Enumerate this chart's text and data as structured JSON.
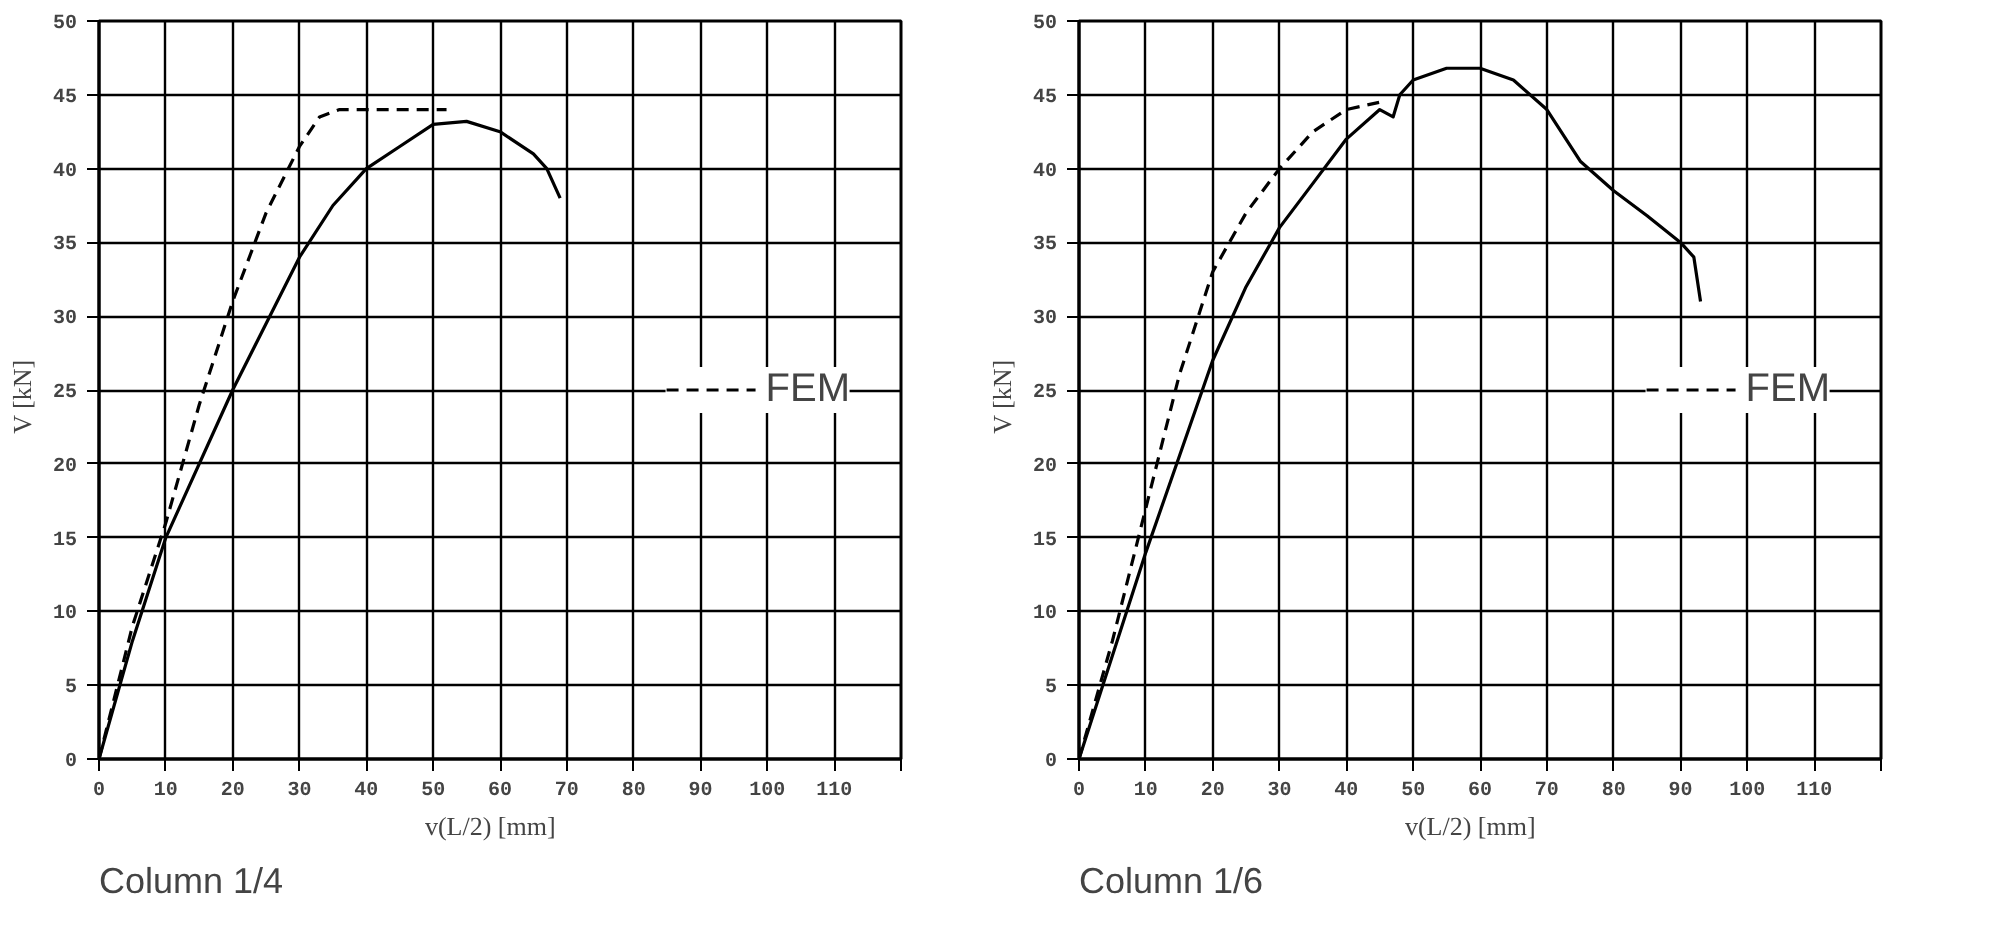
{
  "chart_data": [
    {
      "type": "line",
      "xlabel": "v(L/2)    [mm]",
      "ylabel": "V   [kN]",
      "annotations": [
        "Column 1/4"
      ],
      "xlim": [
        0,
        120
      ],
      "ylim": [
        0,
        50
      ],
      "xticks": [
        0,
        10,
        20,
        30,
        40,
        50,
        60,
        70,
        80,
        90,
        100,
        110,
        {
          "value": 120,
          "label": null
        }
      ],
      "yticks": [
        0,
        5,
        10,
        15,
        20,
        25,
        30,
        35,
        40,
        45,
        50
      ],
      "grid": true,
      "legend": "right",
      "marker": "none",
      "series": [
        {
          "color": "#000000",
          "line_style": "solid",
          "x": [
            0,
            5,
            10,
            20,
            30,
            35,
            40,
            45,
            50,
            55,
            60,
            65,
            67,
            69
          ],
          "values": [
            0,
            8,
            15,
            25,
            34,
            37.5,
            40,
            41.5,
            43,
            43.2,
            42.5,
            41,
            40,
            38
          ]
        },
        {
          "name": "FEM",
          "color": "#000000",
          "line_style": "dashed",
          "x": [
            0,
            5,
            10,
            15,
            20,
            25,
            30,
            33,
            36,
            40,
            50,
            52
          ],
          "values": [
            0,
            9,
            16,
            24,
            31,
            37,
            41.5,
            43.5,
            44,
            44,
            44,
            44
          ]
        }
      ]
    },
    {
      "type": "line",
      "xlabel": "v(L/2)    [mm]",
      "ylabel": "V   [kN]",
      "annotations": [
        "Column 1/6"
      ],
      "xlim": [
        0,
        120
      ],
      "ylim": [
        0,
        50
      ],
      "xticks": [
        0,
        10,
        20,
        30,
        40,
        50,
        60,
        70,
        80,
        90,
        100,
        110,
        {
          "value": 120,
          "label": null
        }
      ],
      "yticks": [
        0,
        5,
        10,
        15,
        20,
        25,
        30,
        35,
        40,
        45,
        50
      ],
      "grid": true,
      "legend": "right",
      "marker": "none",
      "series": [
        {
          "color": "#000000",
          "line_style": "solid",
          "x": [
            0,
            10,
            15,
            20,
            25,
            30,
            35,
            40,
            45,
            47,
            48,
            50,
            55,
            60,
            65,
            70,
            75,
            80,
            85,
            90,
            92,
            93
          ],
          "values": [
            0,
            14,
            20.5,
            27,
            32,
            36,
            39,
            42,
            44,
            43.5,
            45,
            46,
            46.8,
            46.8,
            46,
            44,
            40.5,
            38.5,
            36.8,
            35,
            34,
            31
          ]
        },
        {
          "name": "FEM",
          "color": "#000000",
          "line_style": "dashed",
          "x": [
            0,
            5,
            10,
            15,
            20,
            25,
            30,
            35,
            40,
            45
          ],
          "values": [
            0,
            8,
            17,
            26,
            33,
            37,
            40,
            42.5,
            44,
            44.5
          ]
        }
      ]
    }
  ]
}
